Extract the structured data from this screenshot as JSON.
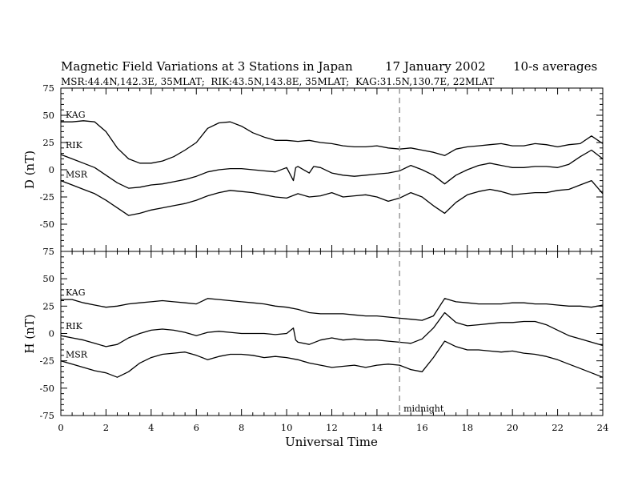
{
  "header": {
    "title": "Magnetic Field Variations at 3 Stations in Japan",
    "date": "17 January 2002",
    "averaging": "10-s averages",
    "stations_line": "MSR:44.4N,142.3E, 35MLAT;  RIK:43.5N,143.8E, 35MLAT;  KAG:31.5N,130.7E, 22MLAT"
  },
  "chart_data": [
    {
      "type": "line",
      "panel": "D",
      "ylabel": "D (nT)",
      "ylim": [
        -75,
        75
      ],
      "yticks": [
        75,
        50,
        25,
        0,
        -25,
        -50,
        -75
      ],
      "xlim": [
        0,
        24
      ],
      "grid": false,
      "series": [
        {
          "name": "KAG",
          "x": [
            0,
            0.5,
            1,
            1.5,
            2,
            2.5,
            3,
            3.5,
            4,
            4.5,
            5,
            5.5,
            6,
            6.5,
            7,
            7.5,
            8,
            8.5,
            9,
            9.5,
            10,
            10.5,
            11,
            11.5,
            12,
            12.5,
            13,
            13.5,
            14,
            14.5,
            15,
            15.5,
            16,
            16.5,
            17,
            17.5,
            18,
            18.5,
            19,
            19.5,
            20,
            20.5,
            21,
            21.5,
            22,
            22.5,
            23,
            23.5,
            24
          ],
          "values": [
            44,
            44,
            45,
            44,
            35,
            20,
            10,
            6,
            6,
            8,
            12,
            18,
            25,
            38,
            43,
            44,
            40,
            34,
            30,
            27,
            27,
            26,
            27,
            25,
            24,
            22,
            21,
            21,
            22,
            20,
            19,
            20,
            18,
            16,
            13,
            19,
            21,
            22,
            23,
            24,
            22,
            22,
            24,
            23,
            21,
            23,
            24,
            31,
            24
          ]
        },
        {
          "name": "RIK",
          "x": [
            0,
            0.5,
            1,
            1.5,
            2,
            2.5,
            3,
            3.5,
            4,
            4.5,
            5,
            5.5,
            6,
            6.5,
            7,
            7.5,
            8,
            8.5,
            9,
            9.5,
            10,
            10.3,
            10.4,
            10.5,
            11,
            11.2,
            11.5,
            12,
            12.5,
            13,
            13.5,
            14,
            14.5,
            15,
            15.5,
            16,
            16.5,
            17,
            17.5,
            18,
            18.5,
            19,
            19.5,
            20,
            20.5,
            21,
            21.5,
            22,
            22.5,
            23,
            23.5,
            24
          ],
          "values": [
            14,
            10,
            6,
            2,
            -5,
            -12,
            -17,
            -16,
            -14,
            -13,
            -11,
            -9,
            -6,
            -2,
            0,
            1,
            1,
            0,
            -1,
            -2,
            2,
            -10,
            2,
            3,
            -3,
            3,
            2,
            -3,
            -5,
            -6,
            -5,
            -4,
            -3,
            -1,
            4,
            0,
            -5,
            -13,
            -5,
            0,
            4,
            6,
            4,
            2,
            2,
            3,
            3,
            2,
            5,
            12,
            18,
            10
          ]
        },
        {
          "name": "MSR",
          "x": [
            0,
            0.5,
            1,
            1.5,
            2,
            2.5,
            3,
            3.5,
            4,
            4.5,
            5,
            5.5,
            6,
            6.5,
            7,
            7.5,
            8,
            8.5,
            9,
            9.5,
            10,
            10.5,
            11,
            11.5,
            12,
            12.5,
            13,
            13.5,
            14,
            14.5,
            15,
            15.5,
            16,
            16.5,
            17,
            17.5,
            18,
            18.5,
            19,
            19.5,
            20,
            20.5,
            21,
            21.5,
            22,
            22.5,
            23,
            23.5,
            24
          ],
          "values": [
            -10,
            -14,
            -18,
            -22,
            -28,
            -35,
            -42,
            -40,
            -37,
            -35,
            -33,
            -31,
            -28,
            -24,
            -21,
            -19,
            -20,
            -21,
            -23,
            -25,
            -26,
            -22,
            -25,
            -24,
            -21,
            -25,
            -24,
            -23,
            -25,
            -29,
            -26,
            -21,
            -25,
            -33,
            -40,
            -30,
            -23,
            -20,
            -18,
            -20,
            -23,
            -22,
            -21,
            -21,
            -19,
            -18,
            -14,
            -10,
            -22
          ]
        }
      ]
    },
    {
      "type": "line",
      "panel": "H",
      "ylabel": "H (nT)",
      "xlabel": "Universal Time",
      "ylim": [
        -75,
        75
      ],
      "yticks": [
        75,
        50,
        25,
        0,
        -25,
        -50,
        -75
      ],
      "xlim": [
        0,
        24
      ],
      "xticks": [
        0,
        2,
        4,
        6,
        8,
        10,
        12,
        14,
        16,
        18,
        20,
        22,
        24
      ],
      "grid": false,
      "series": [
        {
          "name": "KAG",
          "x": [
            0,
            0.5,
            1,
            1.5,
            2,
            2.5,
            3,
            3.5,
            4,
            4.5,
            5,
            5.5,
            6,
            6.5,
            7,
            7.5,
            8,
            8.5,
            9,
            9.5,
            10,
            10.5,
            11,
            11.5,
            12,
            12.5,
            13,
            13.5,
            14,
            14.5,
            15,
            15.5,
            16,
            16.5,
            17,
            17.5,
            18,
            18.5,
            19,
            19.5,
            20,
            20.5,
            21,
            21.5,
            22,
            22.5,
            23,
            23.5,
            24
          ],
          "values": [
            31,
            31,
            28,
            26,
            24,
            25,
            27,
            28,
            29,
            30,
            29,
            28,
            27,
            32,
            31,
            30,
            29,
            28,
            27,
            25,
            24,
            22,
            19,
            18,
            18,
            18,
            17,
            16,
            16,
            15,
            14,
            13,
            12,
            16,
            32,
            29,
            28,
            27,
            27,
            27,
            28,
            28,
            27,
            27,
            26,
            25,
            25,
            24,
            26
          ]
        },
        {
          "name": "RIK",
          "x": [
            0,
            0.5,
            1,
            1.5,
            2,
            2.5,
            3,
            3.5,
            4,
            4.5,
            5,
            5.5,
            6,
            6.5,
            7,
            7.5,
            8,
            8.5,
            9,
            9.5,
            10,
            10.3,
            10.4,
            10.5,
            11,
            11.5,
            12,
            12.5,
            13,
            13.5,
            14,
            14.5,
            15,
            15.5,
            16,
            16.5,
            17,
            17.5,
            18,
            18.5,
            19,
            19.5,
            20,
            20.5,
            21,
            21.5,
            22,
            22.5,
            23,
            23.5,
            24
          ],
          "values": [
            -2,
            -4,
            -6,
            -9,
            -12,
            -10,
            -4,
            0,
            3,
            4,
            3,
            1,
            -2,
            1,
            2,
            1,
            0,
            0,
            0,
            -1,
            0,
            5,
            -6,
            -8,
            -10,
            -6,
            -4,
            -6,
            -5,
            -6,
            -6,
            -7,
            -8,
            -9,
            -5,
            5,
            19,
            10,
            7,
            8,
            9,
            10,
            10,
            11,
            11,
            8,
            3,
            -2,
            -5,
            -8,
            -11
          ]
        },
        {
          "name": "MSR",
          "x": [
            0,
            0.5,
            1,
            1.5,
            2,
            2.5,
            3,
            3.5,
            4,
            4.5,
            5,
            5.5,
            6,
            6.5,
            7,
            7.5,
            8,
            8.5,
            9,
            9.5,
            10,
            10.5,
            11,
            11.5,
            12,
            12.5,
            13,
            13.5,
            14,
            14.5,
            15,
            15.5,
            16,
            16.5,
            17,
            17.5,
            18,
            18.5,
            19,
            19.5,
            20,
            20.5,
            21,
            21.5,
            22,
            22.5,
            23,
            23.5,
            24
          ],
          "values": [
            -25,
            -28,
            -31,
            -34,
            -36,
            -40,
            -35,
            -27,
            -22,
            -19,
            -18,
            -17,
            -20,
            -24,
            -21,
            -19,
            -19,
            -20,
            -22,
            -21,
            -22,
            -24,
            -27,
            -29,
            -31,
            -30,
            -29,
            -31,
            -29,
            -28,
            -29,
            -33,
            -35,
            -22,
            -7,
            -12,
            -15,
            -15,
            -16,
            -17,
            -16,
            -18,
            -19,
            -21,
            -24,
            -28,
            -32,
            -36,
            -40
          ]
        }
      ]
    }
  ],
  "annotation": {
    "marker_label": "midnight",
    "marker_x": 15
  }
}
